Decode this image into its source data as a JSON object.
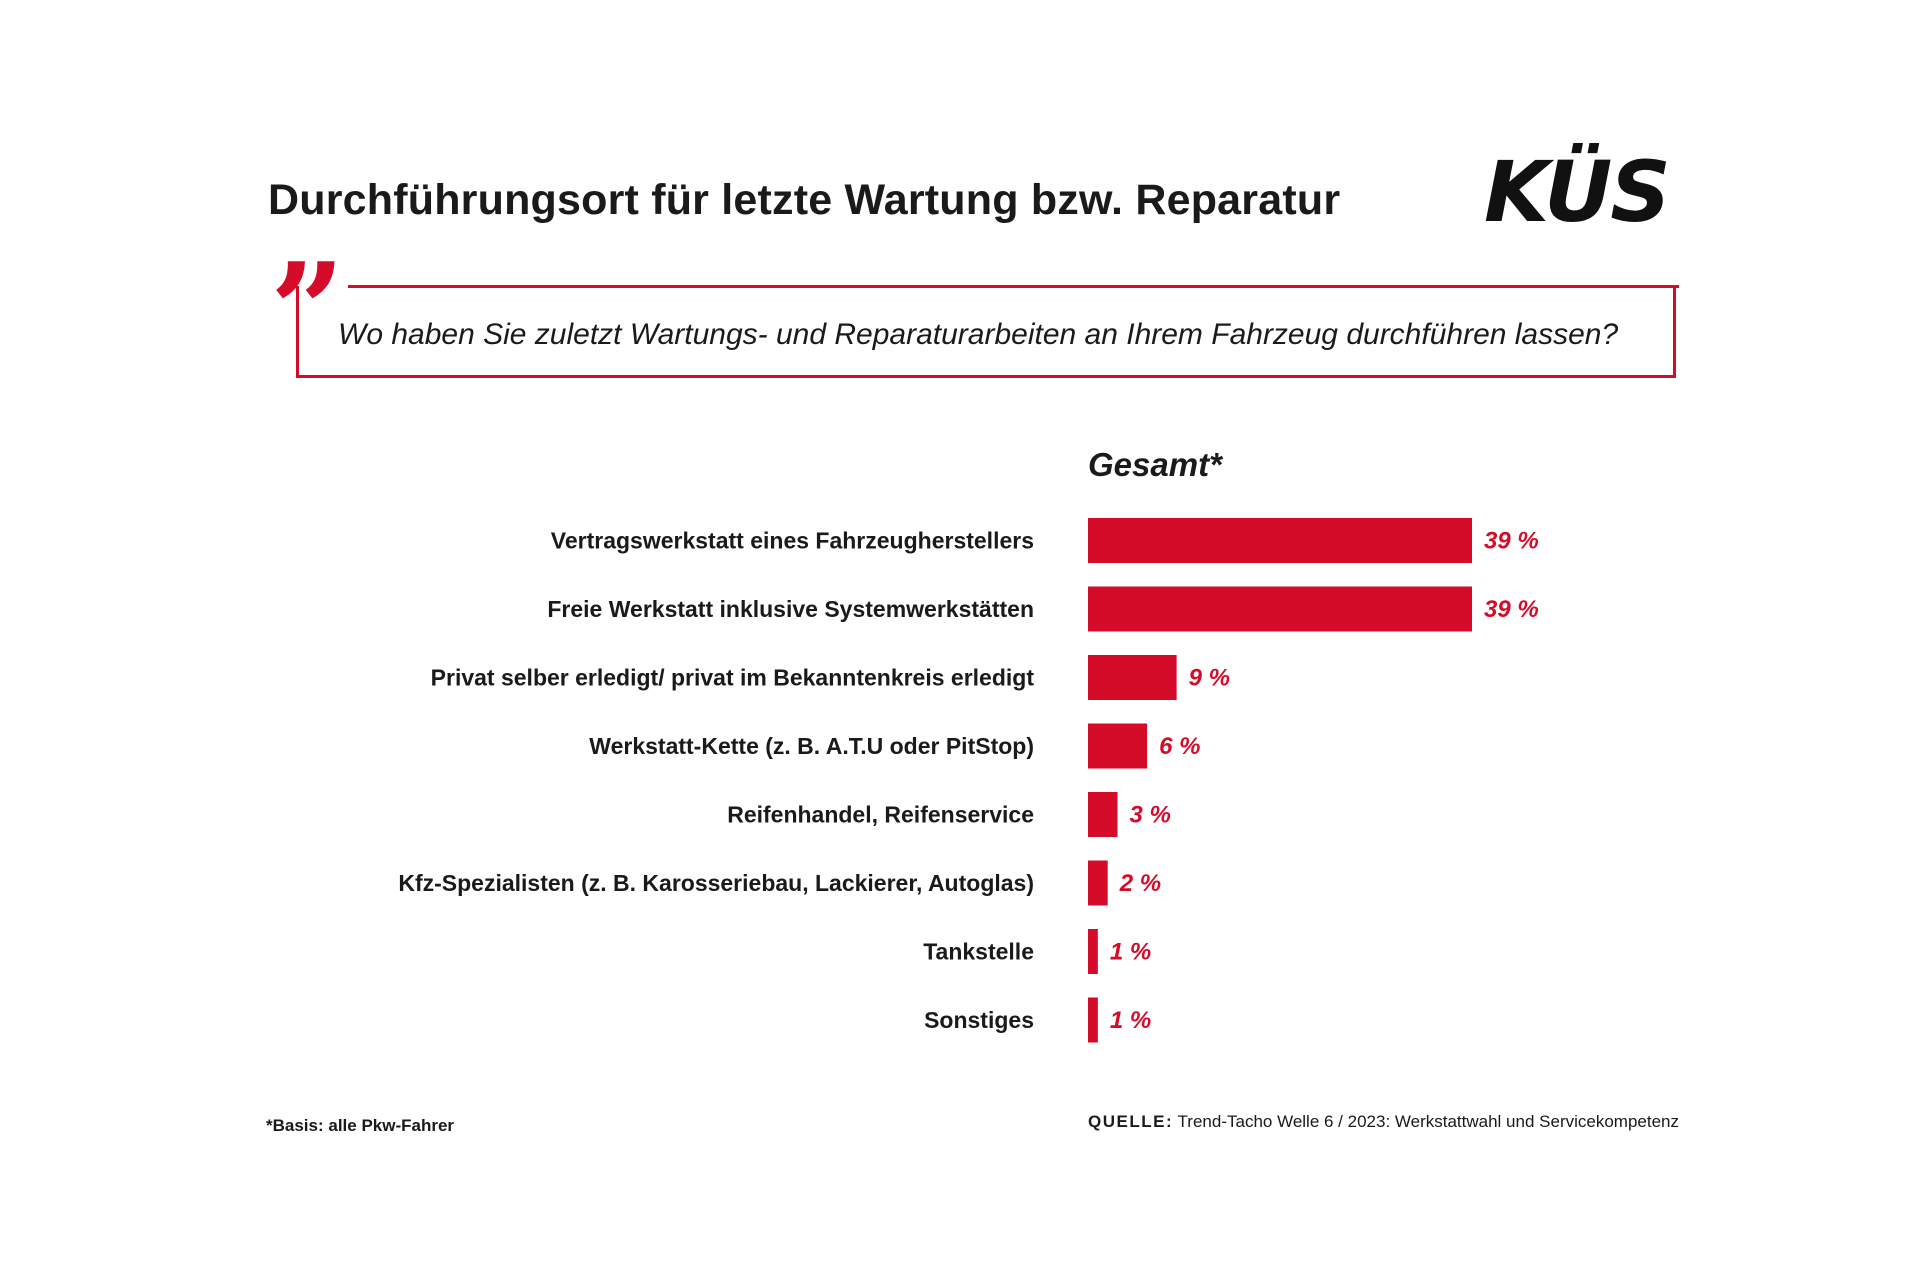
{
  "header": {
    "title": "Durchführungsort für letzte Wartung bzw. Reparatur",
    "logo": "KÜS"
  },
  "question": {
    "mark": "”",
    "text": "Wo haben Sie zuletzt Wartungs- und Reparaturarbeiten an Ihrem Fahrzeug durchführen lassen?"
  },
  "colors": {
    "accent": "#d50b2a",
    "text": "#1a1a1a"
  },
  "chart_data": {
    "type": "bar",
    "orientation": "horizontal",
    "title": "Gesamt*",
    "categories": [
      "Vertragswerkstatt eines Fahrzeugherstellers",
      "Freie Werkstatt inklusive Systemwerkstätten",
      "Privat selber erledigt/ privat im Bekanntenkreis erledigt",
      "Werkstatt-Kette (z. B. A.T.U oder PitStop)",
      "Reifenhandel, Reifenservice",
      "Kfz-Spezialisten (z. B. Karosseriebau, Lackierer, Autoglas)",
      "Tankstelle",
      "Sonstiges"
    ],
    "values": [
      39,
      39,
      9,
      6,
      3,
      2,
      1,
      1
    ],
    "value_labels": [
      "39 %",
      "39 %",
      "9 %",
      "6 %",
      "3 %",
      "2 %",
      "1 %",
      "1 %"
    ],
    "unit": "%",
    "xlim": [
      0,
      39
    ],
    "grid": false,
    "legend": "none"
  },
  "footer": {
    "footnote": "*Basis: alle Pkw-Fahrer",
    "source_label": "QUELLE:",
    "source_text": " Trend-Tacho Welle 6 / 2023: Werkstattwahl und Servicekompetenz"
  }
}
